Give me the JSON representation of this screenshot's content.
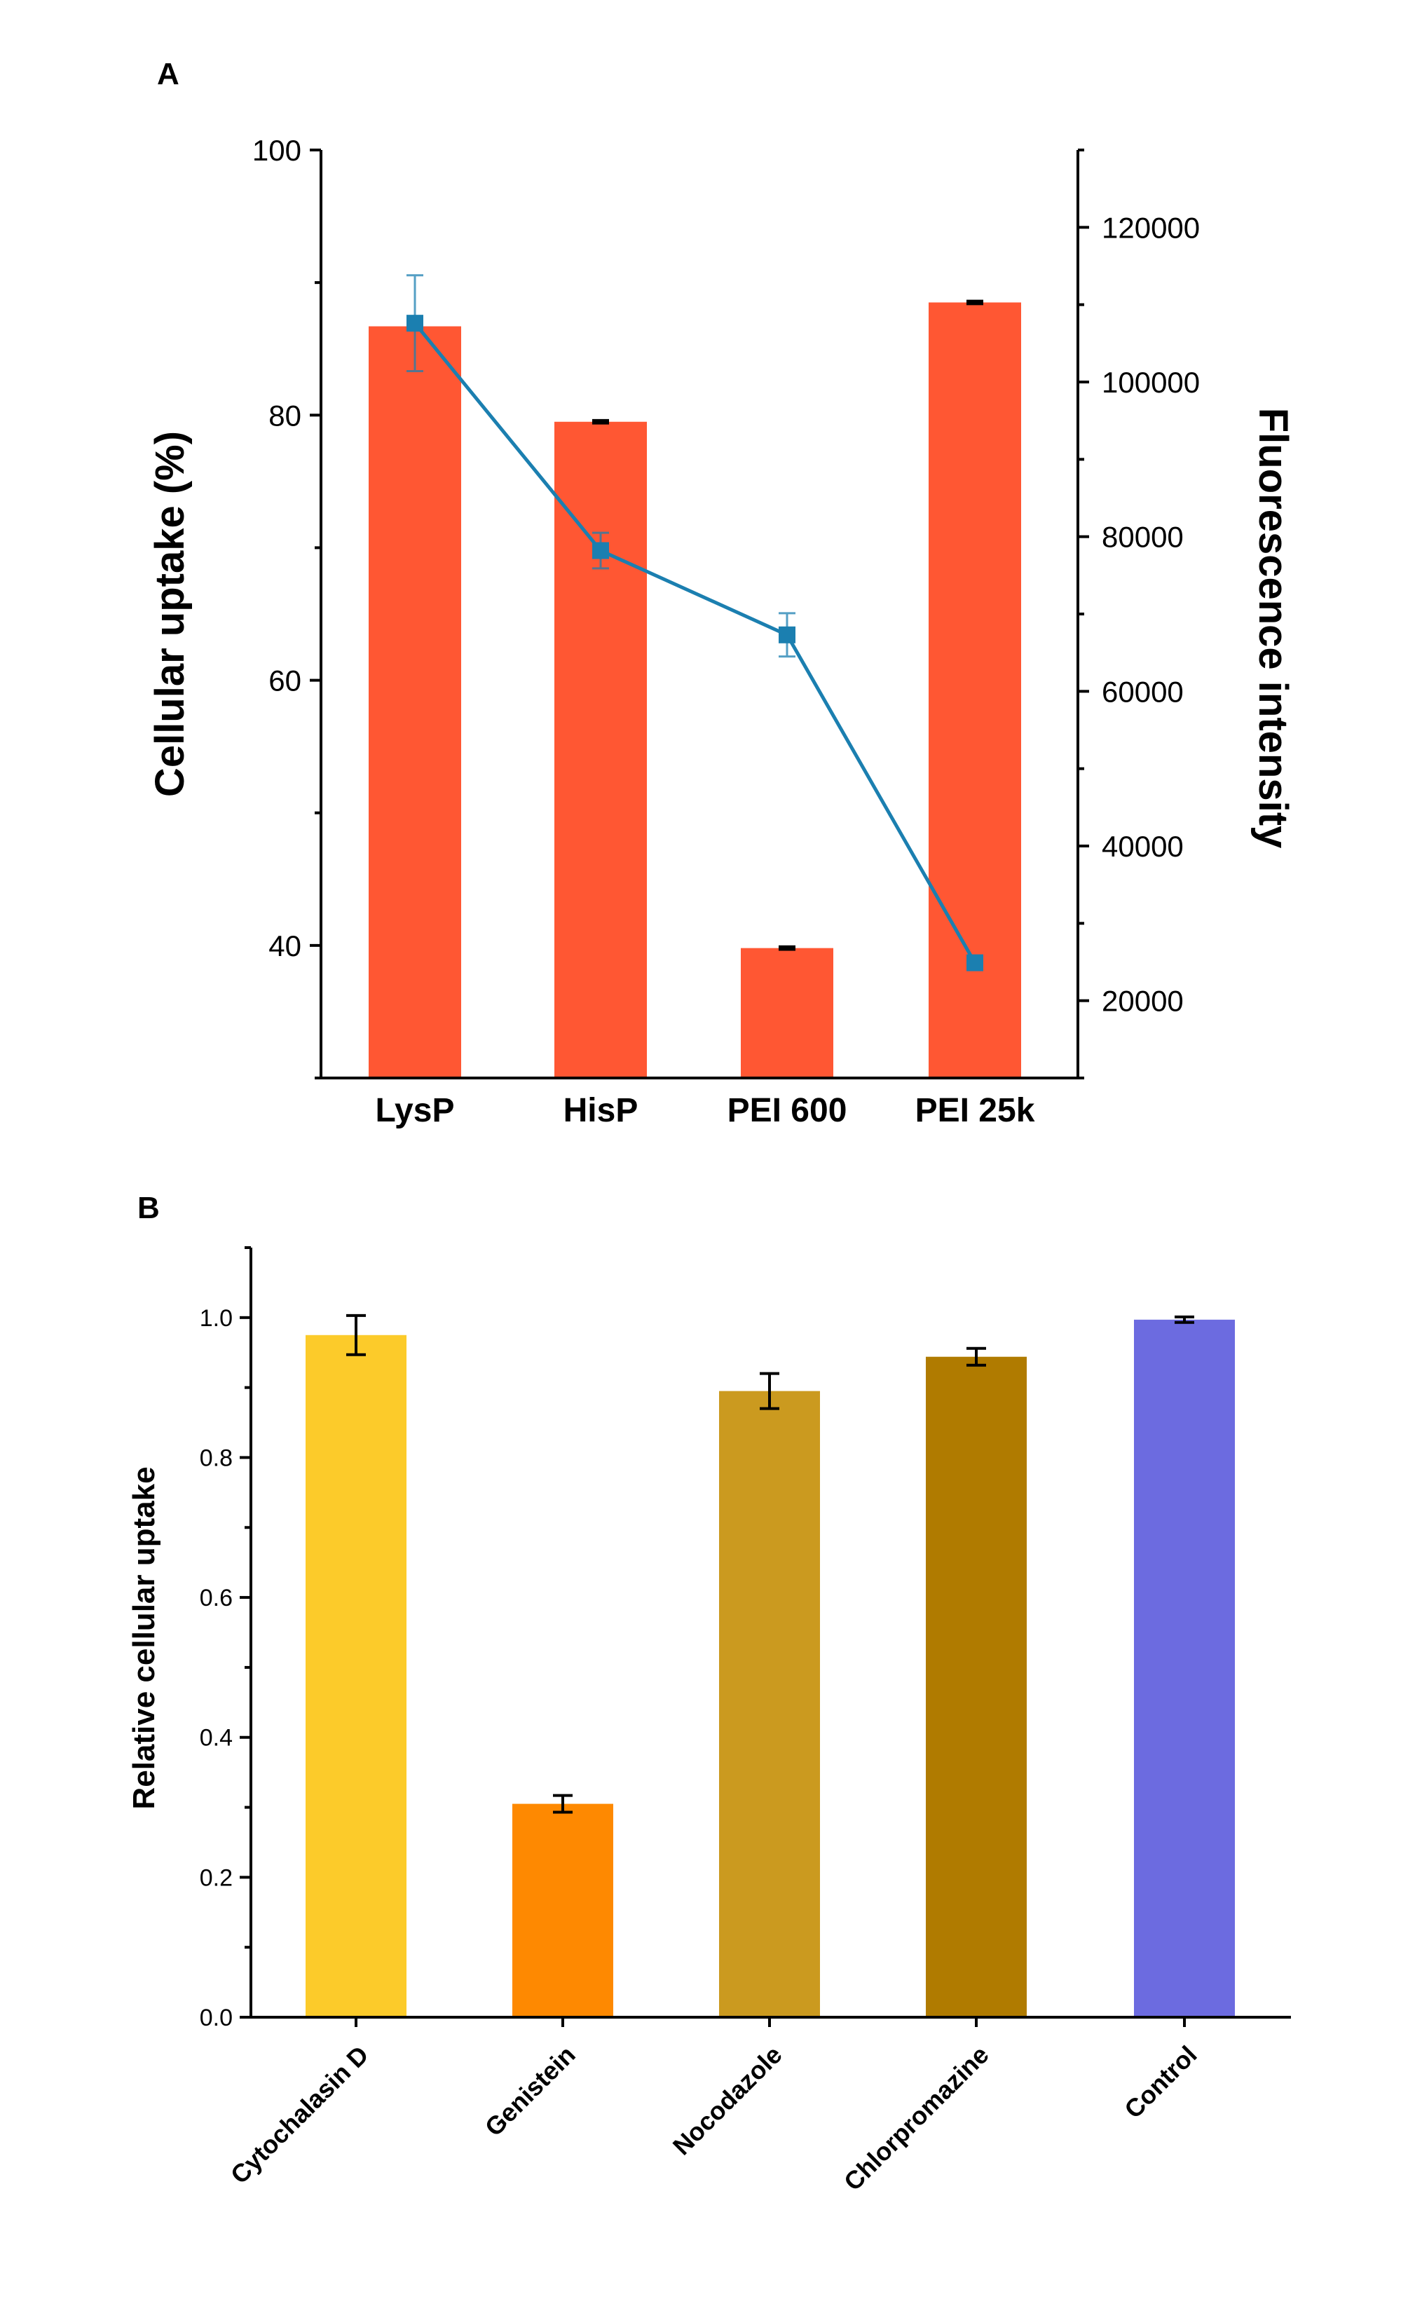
{
  "chart_data": [
    {
      "panel": "A",
      "type": "bar+line",
      "categories": [
        "LysP",
        "HisP",
        "PEI 600",
        "PEI 25k"
      ],
      "series": [
        {
          "name": "Cellular uptake (%)",
          "type": "bar",
          "axis": "left",
          "color": "#ff5733",
          "values": [
            86.7,
            79.5,
            39.8,
            88.5
          ],
          "errors": [
            0,
            0.1,
            0.1,
            0.1
          ]
        },
        {
          "name": "Fluorescence intensity",
          "type": "line",
          "axis": "right",
          "color": "#1b7fb0",
          "values": [
            107600,
            78200,
            67300,
            24900
          ],
          "errors": [
            6200,
            2300,
            2800,
            0
          ]
        }
      ],
      "ylabel": "Cellular uptake (%)",
      "y2label": "Fluorescence intensity",
      "ylim": [
        30,
        100
      ],
      "y2lim": [
        10000,
        130000
      ],
      "yticks": [
        40,
        60,
        80,
        100
      ],
      "y2ticks": [
        20000,
        40000,
        60000,
        80000,
        100000,
        120000
      ]
    },
    {
      "panel": "B",
      "type": "bar",
      "categories": [
        "Cytochalasin D",
        "Genistein",
        "Nocodazole",
        "Chlorpromazine",
        "Control"
      ],
      "values": [
        0.975,
        0.305,
        0.895,
        0.944,
        0.997
      ],
      "errors": [
        0.028,
        0.012,
        0.025,
        0.012,
        0.004
      ],
      "colors": [
        "#fccb2a",
        "#fe8901",
        "#cb9a1f",
        "#b07b00",
        "#6c6be0"
      ],
      "ylabel": "Relative cellular uptake",
      "ylim": [
        0,
        1.1
      ],
      "yticks": [
        0.0,
        0.2,
        0.4,
        0.6,
        0.8,
        1.0
      ]
    }
  ]
}
